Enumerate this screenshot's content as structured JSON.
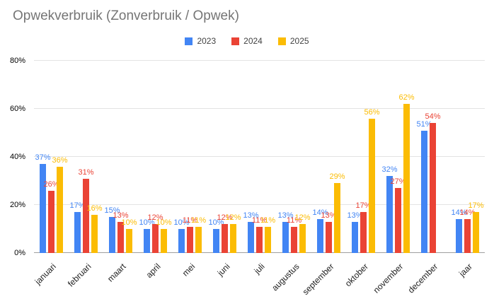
{
  "chart_data": {
    "type": "bar",
    "title": "Opwekverbruik (Zonverbruik / Opwek)",
    "categories": [
      "januari",
      "februari",
      "maart",
      "april",
      "mei",
      "juni",
      "juli",
      "augustus",
      "september",
      "oktober",
      "november",
      "december",
      "jaar"
    ],
    "series": [
      {
        "name": "2023",
        "color": "#4285F4",
        "values": [
          37,
          17,
          15,
          10,
          10,
          10,
          13,
          13,
          14,
          13,
          32,
          51,
          14
        ]
      },
      {
        "name": "2024",
        "color": "#EA4335",
        "values": [
          26,
          31,
          13,
          12,
          11,
          12,
          11,
          11,
          13,
          17,
          27,
          54,
          14
        ]
      },
      {
        "name": "2025",
        "color": "#FBBC04",
        "values": [
          36,
          16,
          10,
          10,
          11,
          12,
          11,
          12,
          29,
          56,
          62,
          null,
          17
        ]
      }
    ],
    "value_suffix": "%",
    "yticks": [
      0,
      20,
      40,
      60,
      80
    ],
    "ytick_labels": [
      "0%",
      "20%",
      "40%",
      "60%",
      "80%"
    ],
    "ylim": [
      0,
      80
    ],
    "grid": true,
    "legend_position": "top",
    "data_labels": true,
    "title_color": "#757575"
  }
}
